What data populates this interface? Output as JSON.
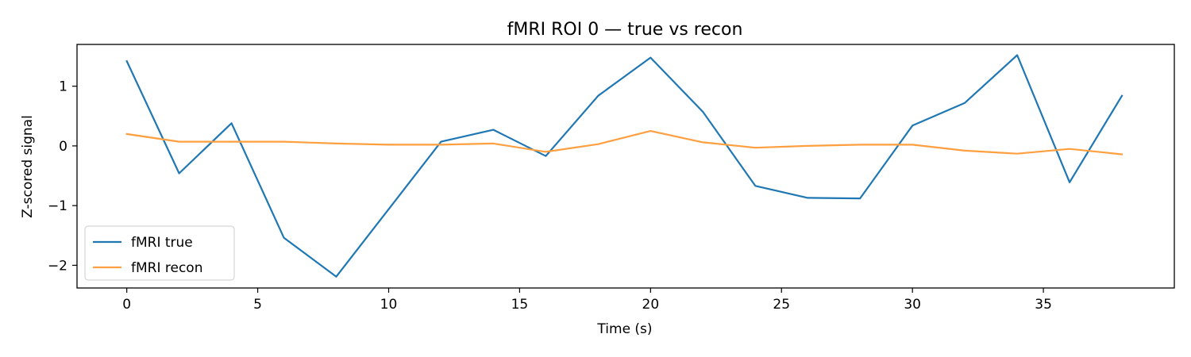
{
  "chart_data": {
    "type": "line",
    "title": "fMRI ROI 0 — true vs recon",
    "xlabel": "Time (s)",
    "ylabel": "Z-scored signal",
    "xlim": [
      -1.9,
      40.0
    ],
    "ylim": [
      -2.38,
      1.7
    ],
    "xticks": [
      0,
      5,
      10,
      15,
      20,
      25,
      30,
      35
    ],
    "xtick_labels": [
      "0",
      "5",
      "10",
      "15",
      "20",
      "25",
      "30",
      "35"
    ],
    "yticks": [
      1,
      0,
      -1,
      -2
    ],
    "ytick_labels": [
      "1",
      "0",
      "−1",
      "−2"
    ],
    "grid": false,
    "legend_position": "lower-left",
    "x": [
      0,
      2,
      4,
      6,
      8,
      10,
      12,
      14,
      16,
      18,
      20,
      22,
      24,
      26,
      28,
      30,
      32,
      34,
      36,
      38
    ],
    "series": [
      {
        "name": "fMRI true",
        "color": "#1f77b4",
        "values": [
          1.42,
          -0.46,
          0.38,
          -1.54,
          -2.19,
          -1.06,
          0.07,
          0.27,
          -0.17,
          0.84,
          1.48,
          0.57,
          -0.67,
          -0.87,
          -0.88,
          0.34,
          0.72,
          1.52,
          -0.61,
          0.84
        ]
      },
      {
        "name": "fMRI recon",
        "color": "#ff9f40",
        "values": [
          0.2,
          0.07,
          0.07,
          0.07,
          0.04,
          0.02,
          0.02,
          0.04,
          -0.1,
          0.03,
          0.25,
          0.06,
          -0.03,
          0.0,
          0.02,
          0.02,
          -0.08,
          -0.13,
          -0.05,
          -0.14
        ]
      }
    ]
  }
}
